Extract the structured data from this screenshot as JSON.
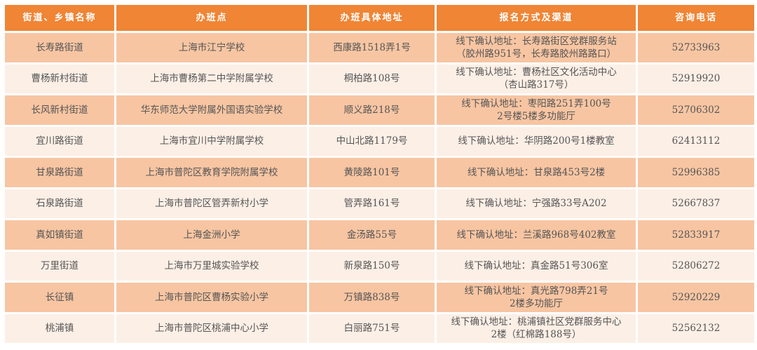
{
  "colors": {
    "header": "#ef8535",
    "row_odd": "#f7c5a2",
    "row_even": "#fcefe6"
  },
  "headers": [
    "街道、乡镇名称",
    "办班点",
    "办班具体地址",
    "报名方式及渠道",
    "咨询电话"
  ],
  "rows": [
    {
      "district": "长寿路街道",
      "site": "上海市江宁学校",
      "address": "西康路1518弄1号",
      "signup": [
        "线下确认地址：长寿路街区党群服务站",
        "（胶州路951号，长寿路胶州路路口）"
      ],
      "phone": "52733963"
    },
    {
      "district": "曹杨新村街道",
      "site": "上海市曹杨第二中学附属学校",
      "address": "桐柏路108号",
      "signup": [
        "线下确认地址：曹杨社区文化活动中心",
        "（杏山路317号）"
      ],
      "phone": "52919920"
    },
    {
      "district": "长风新村街道",
      "site": "华东师范大学附属外国语实验学校",
      "address": "顺义路218号",
      "signup": [
        "线下确认地址：枣阳路251弄100号",
        "2号楼5楼多功能厅"
      ],
      "phone": "52706302"
    },
    {
      "district": "宜川路街道",
      "site": "上海市宜川中学附属学校",
      "address": "中山北路1179号",
      "signup": [
        "线下确认地址：华阴路200号1楼教室"
      ],
      "phone": "62413112"
    },
    {
      "district": "甘泉路街道",
      "site": "上海市普陀区教育学院附属学校",
      "address": "黄陵路101号",
      "signup": [
        "线下确认地址：甘泉路453号2楼"
      ],
      "phone": "52996385"
    },
    {
      "district": "石泉路街道",
      "site": "上海市普陀区管弄新村小学",
      "address": "管弄路161号",
      "signup": [
        "线下确认地址：宁强路33号A202"
      ],
      "phone": "52667837"
    },
    {
      "district": "真如镇街道",
      "site": "上海金洲小学",
      "address": "金汤路55号",
      "signup": [
        "线下确认地址：兰溪路968号402教室"
      ],
      "phone": "52833917"
    },
    {
      "district": "万里街道",
      "site": "上海市万里城实验学校",
      "address": "新泉路150号",
      "signup": [
        "线下确认地址：真金路51号306室"
      ],
      "phone": "52806272"
    },
    {
      "district": "长征镇",
      "site": "上海市普陀区曹杨实验小学",
      "address": "万镇路838号",
      "signup": [
        "线下确认地址：真光路798弄21号",
        "2楼多功能厅"
      ],
      "phone": "52920229"
    },
    {
      "district": "桃浦镇",
      "site": "上海市普陀区桃浦中心小学",
      "address": "白丽路751号",
      "signup": [
        "线下确认地址：桃浦镇社区党群服务中心",
        "2楼（红棉路188号）"
      ],
      "phone": "52562132"
    }
  ]
}
